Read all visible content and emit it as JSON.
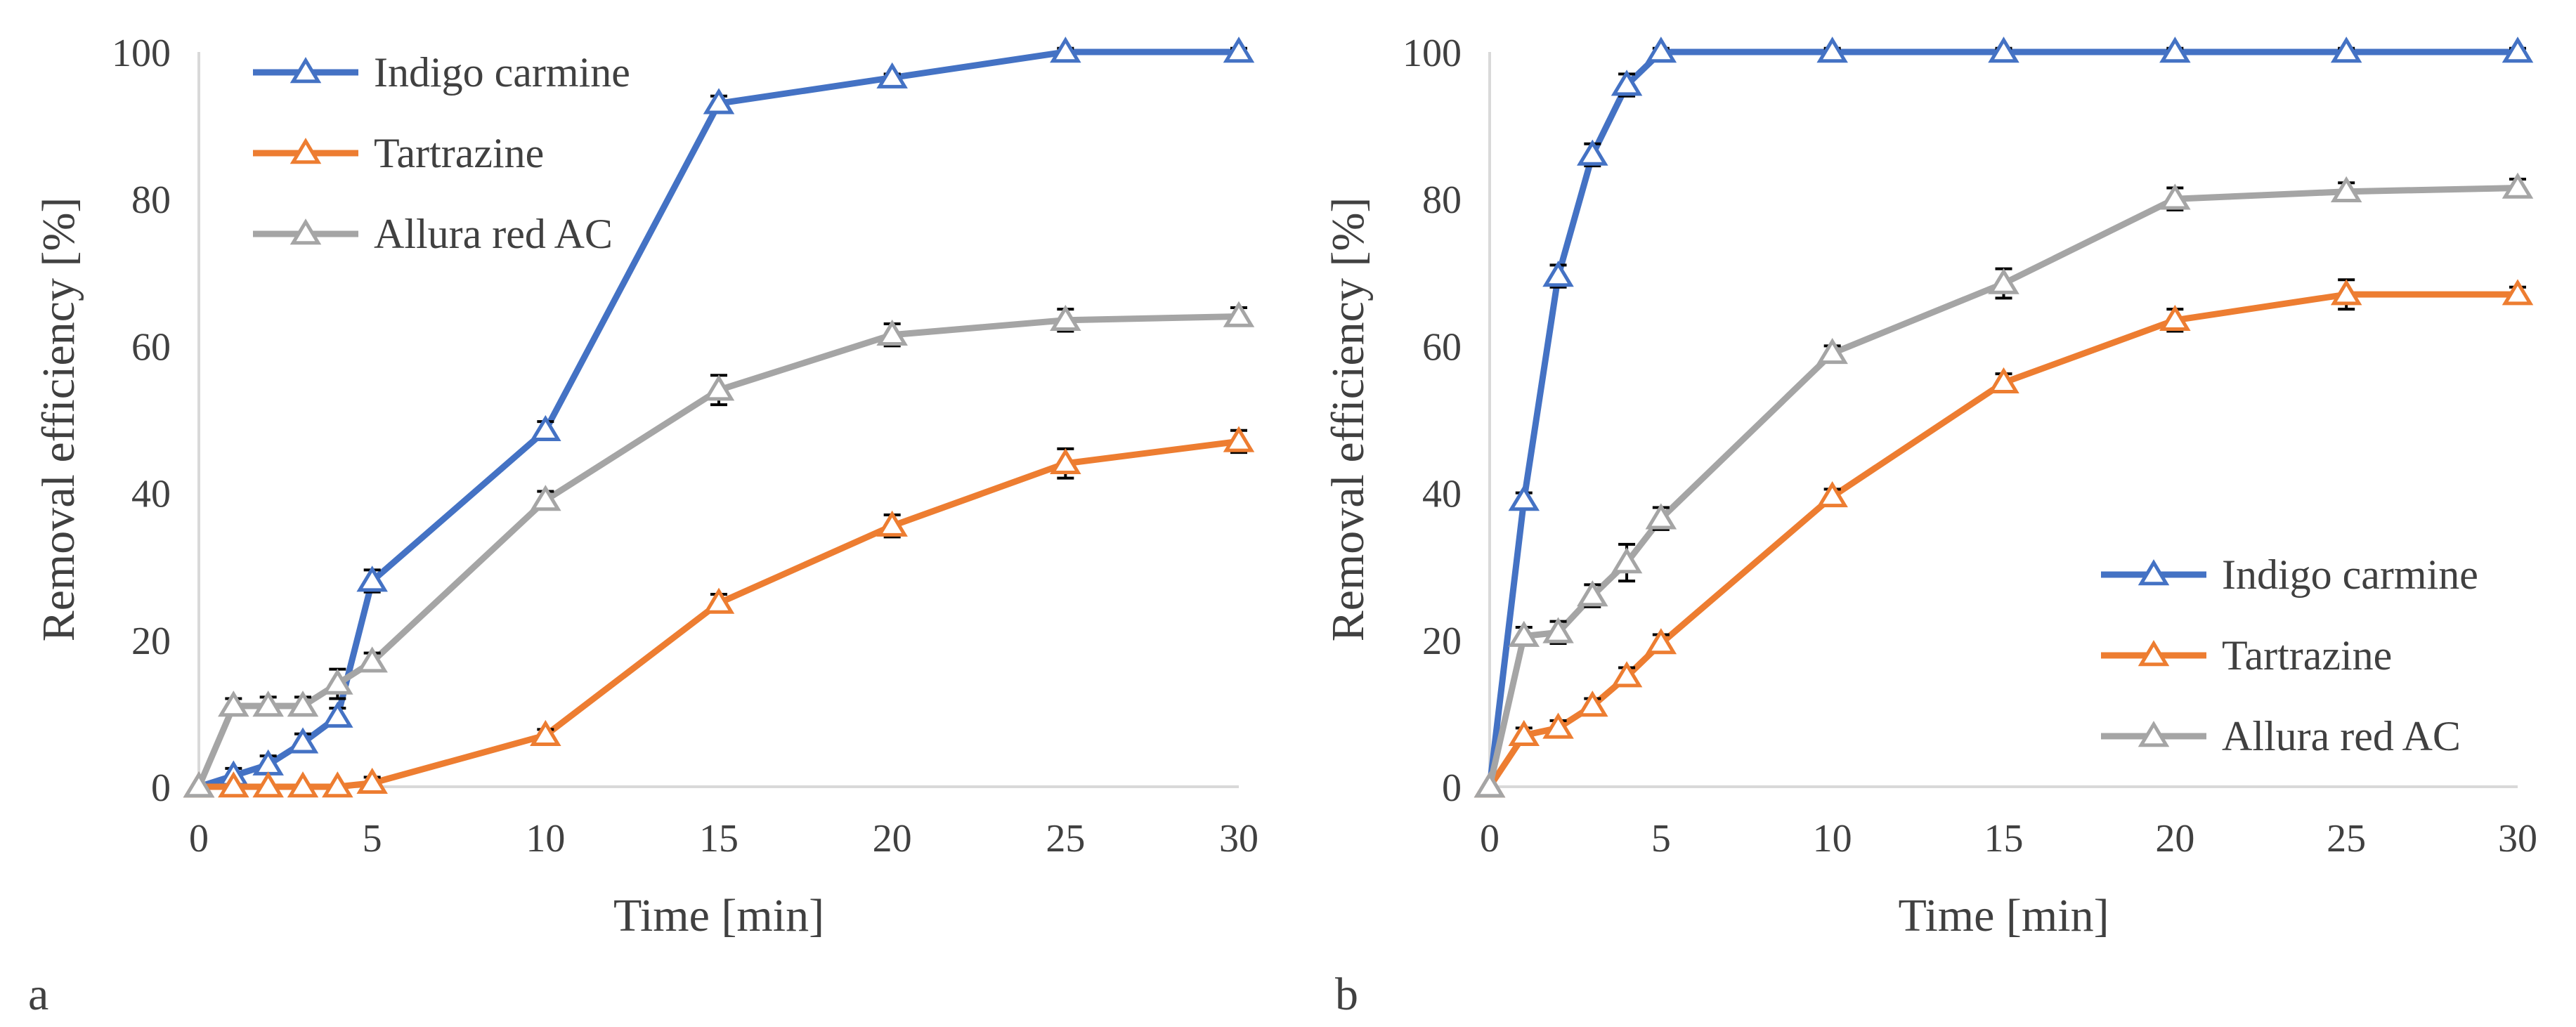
{
  "figure": {
    "panel_labels": [
      "a",
      "b"
    ]
  },
  "chart_data": [
    {
      "type": "line",
      "panel": "a",
      "xlabel": "Time [min]",
      "ylabel": "Removal efficiency [%]",
      "xlim": [
        0,
        30
      ],
      "ylim": [
        0,
        100
      ],
      "xticks": [
        0,
        5,
        10,
        15,
        20,
        25,
        30
      ],
      "yticks": [
        0,
        20,
        40,
        60,
        80,
        100
      ],
      "grid": false,
      "legend_position": "top-left",
      "series": [
        {
          "name": "Indigo carmine",
          "color": "#4472C4",
          "marker": "open-triangle",
          "x": [
            0,
            1,
            2,
            3,
            4,
            5,
            10,
            15,
            20,
            25,
            30
          ],
          "y": [
            0,
            1.5,
            3,
            6,
            9.5,
            28,
            48.5,
            93,
            96.5,
            100,
            100
          ],
          "err": [
            0,
            1,
            1.2,
            1.2,
            1.2,
            1.5,
            1.2,
            1,
            0.5,
            0.5,
            0.5
          ]
        },
        {
          "name": "Tartrazine",
          "color": "#ED7D31",
          "marker": "open-triangle",
          "x": [
            0,
            1,
            2,
            3,
            4,
            5,
            10,
            15,
            20,
            25,
            30
          ],
          "y": [
            0,
            0,
            0,
            0,
            0,
            0.5,
            7,
            25,
            35.5,
            44,
            47
          ],
          "err": [
            0,
            0,
            0,
            0,
            0,
            0.8,
            0.8,
            1.2,
            1.5,
            2,
            1.5
          ]
        },
        {
          "name": "Allura red AC",
          "color": "#A5A5A5",
          "marker": "open-triangle",
          "x": [
            0,
            1,
            2,
            3,
            4,
            5,
            10,
            15,
            20,
            25,
            30
          ],
          "y": [
            0,
            11,
            11,
            11,
            14,
            17,
            39,
            54,
            61.5,
            63.5,
            64
          ],
          "err": [
            0,
            1,
            1.2,
            1.2,
            2,
            1.2,
            1.2,
            2,
            1.5,
            1.5,
            1.2
          ]
        }
      ]
    },
    {
      "type": "line",
      "panel": "b",
      "xlabel": "Time [min]",
      "ylabel": "Removal efficiency [%]",
      "xlim": [
        0,
        30
      ],
      "ylim": [
        0,
        100
      ],
      "xticks": [
        0,
        5,
        10,
        15,
        20,
        25,
        30
      ],
      "yticks": [
        0,
        20,
        40,
        60,
        80,
        100
      ],
      "grid": false,
      "legend_position": "bottom-right",
      "series": [
        {
          "name": "Indigo carmine",
          "color": "#4472C4",
          "marker": "open-triangle",
          "x": [
            0,
            1,
            2,
            3,
            4,
            5,
            10,
            15,
            20,
            25,
            30
          ],
          "y": [
            0,
            39,
            69.5,
            86,
            95.5,
            100,
            100,
            100,
            100,
            100,
            100
          ],
          "err": [
            0,
            1,
            1.5,
            1.5,
            1.5,
            0.5,
            0.5,
            0.5,
            0.5,
            0.5,
            0.5
          ]
        },
        {
          "name": "Tartrazine",
          "color": "#ED7D31",
          "marker": "open-triangle",
          "x": [
            0,
            1,
            2,
            3,
            4,
            5,
            10,
            15,
            20,
            25,
            30
          ],
          "y": [
            0,
            7,
            8,
            11,
            15,
            19.5,
            39.5,
            55,
            63.5,
            67,
            67
          ],
          "err": [
            0,
            1,
            1,
            1,
            1.2,
            1.2,
            1,
            1.2,
            1.5,
            2,
            1
          ]
        },
        {
          "name": "Allura red AC",
          "color": "#A5A5A5",
          "marker": "open-triangle",
          "x": [
            0,
            1,
            2,
            3,
            4,
            5,
            10,
            15,
            20,
            25,
            30
          ],
          "y": [
            0,
            20.5,
            21,
            26,
            30.5,
            36.5,
            59,
            68.5,
            80,
            81,
            81.5
          ],
          "err": [
            0,
            1.2,
            1.5,
            1.5,
            2.5,
            1.5,
            1,
            2,
            1.5,
            1.2,
            1.2
          ]
        }
      ]
    }
  ]
}
